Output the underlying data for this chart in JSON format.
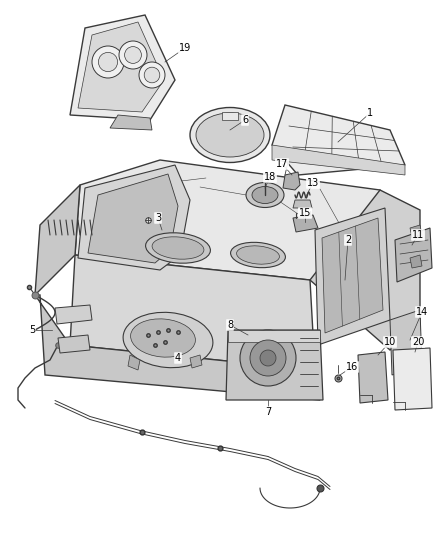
{
  "background_color": "#ffffff",
  "fig_width": 4.38,
  "fig_height": 5.33,
  "dpi": 100,
  "line_color": "#3a3a3a",
  "light_fill": "#f5f5f5",
  "mid_fill": "#e0e0e0",
  "dark_fill": "#c8c8c8",
  "darker_fill": "#b0b0b0",
  "label_fontsize": 7.0,
  "label_color": "#000000"
}
